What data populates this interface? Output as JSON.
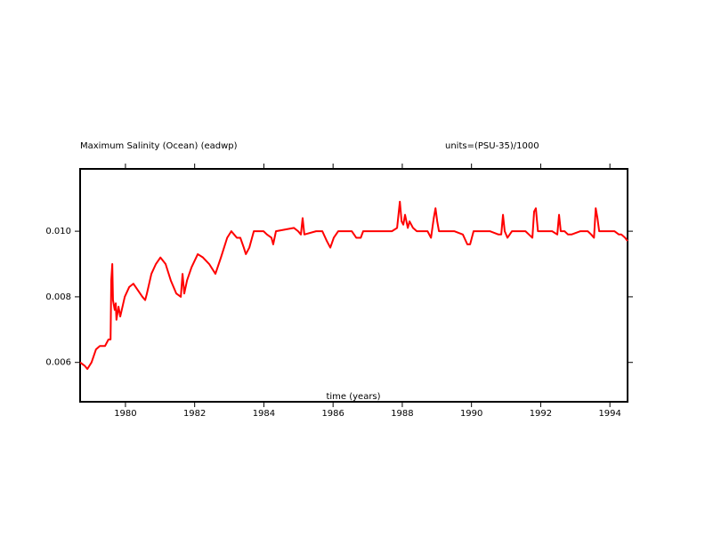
{
  "chart_data": {
    "type": "line",
    "title": "Maximum Salinity (Ocean) (eadwp)",
    "units_label": "units=(PSU-35)/1000",
    "x_label": "time (years)",
    "color": "#ff0000",
    "xlim": [
      1978.69,
      1994.51
    ],
    "ylim": [
      0.0048,
      0.0119
    ],
    "xticks": [
      1980,
      1982,
      1984,
      1986,
      1988,
      1990,
      1992,
      1994
    ],
    "yticks": [
      0.006,
      0.008,
      {
        "value": 0.01,
        "label": "0.010"
      }
    ],
    "x": [
      1978.69,
      1978.82,
      1978.9,
      1979.02,
      1979.15,
      1979.26,
      1979.41,
      1979.51,
      1979.57,
      1979.59,
      1979.62,
      1979.64,
      1979.69,
      1979.72,
      1979.74,
      1979.8,
      1979.85,
      1979.98,
      1980.11,
      1980.23,
      1980.36,
      1980.49,
      1980.57,
      1980.62,
      1980.75,
      1980.88,
      1981.01,
      1981.16,
      1981.31,
      1981.47,
      1981.6,
      1981.65,
      1981.7,
      1981.78,
      1981.91,
      1982.09,
      1982.24,
      1982.42,
      1982.6,
      1982.76,
      1982.94,
      1983.06,
      1983.14,
      1983.22,
      1983.32,
      1983.42,
      1983.48,
      1983.58,
      1983.71,
      1983.99,
      1984.09,
      1984.22,
      1984.27,
      1984.35,
      1984.87,
      1984.99,
      1985.07,
      1985.12,
      1985.17,
      1985.51,
      1985.69,
      1985.82,
      1985.92,
      1986.02,
      1986.15,
      1986.54,
      1986.67,
      1986.8,
      1986.87,
      1987.18,
      1987.7,
      1987.85,
      1987.93,
      1987.98,
      1988.03,
      1988.08,
      1988.16,
      1988.21,
      1988.31,
      1988.42,
      1988.73,
      1988.83,
      1988.91,
      1988.96,
      1989.01,
      1989.06,
      1989.5,
      1989.75,
      1989.88,
      1989.96,
      1990.06,
      1990.53,
      1990.78,
      1990.86,
      1990.91,
      1990.96,
      1991.04,
      1991.17,
      1991.56,
      1991.66,
      1991.76,
      1991.81,
      1991.86,
      1991.92,
      1992.33,
      1992.48,
      1992.53,
      1992.58,
      1992.69,
      1992.79,
      1992.89,
      1993.15,
      1993.36,
      1993.46,
      1993.54,
      1993.59,
      1993.64,
      1993.69,
      1994.13,
      1994.26,
      1994.33,
      1994.44,
      1994.51
    ],
    "values": [
      0.006,
      0.0059,
      0.0058,
      0.006,
      0.0064,
      0.0065,
      0.0065,
      0.0067,
      0.0067,
      0.0085,
      0.009,
      0.0079,
      0.0076,
      0.0078,
      0.0073,
      0.0077,
      0.0074,
      0.008,
      0.0083,
      0.0084,
      0.0082,
      0.008,
      0.0079,
      0.0081,
      0.0087,
      0.009,
      0.0092,
      0.009,
      0.0085,
      0.0081,
      0.008,
      0.0087,
      0.0081,
      0.0085,
      0.0089,
      0.0093,
      0.0092,
      0.009,
      0.0087,
      0.0092,
      0.0098,
      0.01,
      0.0099,
      0.0098,
      0.0098,
      0.0095,
      0.0093,
      0.0095,
      0.01,
      0.01,
      0.0099,
      0.0098,
      0.0096,
      0.01,
      0.0101,
      0.01,
      0.0099,
      0.0104,
      0.0099,
      0.01,
      0.01,
      0.0097,
      0.0095,
      0.0098,
      0.01,
      0.01,
      0.0098,
      0.0098,
      0.01,
      0.01,
      0.01,
      0.0101,
      0.0109,
      0.0103,
      0.0102,
      0.0105,
      0.0101,
      0.0103,
      0.0101,
      0.01,
      0.01,
      0.0098,
      0.0104,
      0.0107,
      0.0103,
      0.01,
      0.01,
      0.0099,
      0.0096,
      0.0096,
      0.01,
      0.01,
      0.0099,
      0.0099,
      0.0105,
      0.01,
      0.0098,
      0.01,
      0.01,
      0.0099,
      0.0098,
      0.0106,
      0.0107,
      0.01,
      0.01,
      0.0099,
      0.0105,
      0.01,
      0.01,
      0.0099,
      0.0099,
      0.01,
      0.01,
      0.0099,
      0.0098,
      0.0107,
      0.0104,
      0.01,
      0.01,
      0.0099,
      0.0099,
      0.0098,
      0.0097
    ]
  }
}
